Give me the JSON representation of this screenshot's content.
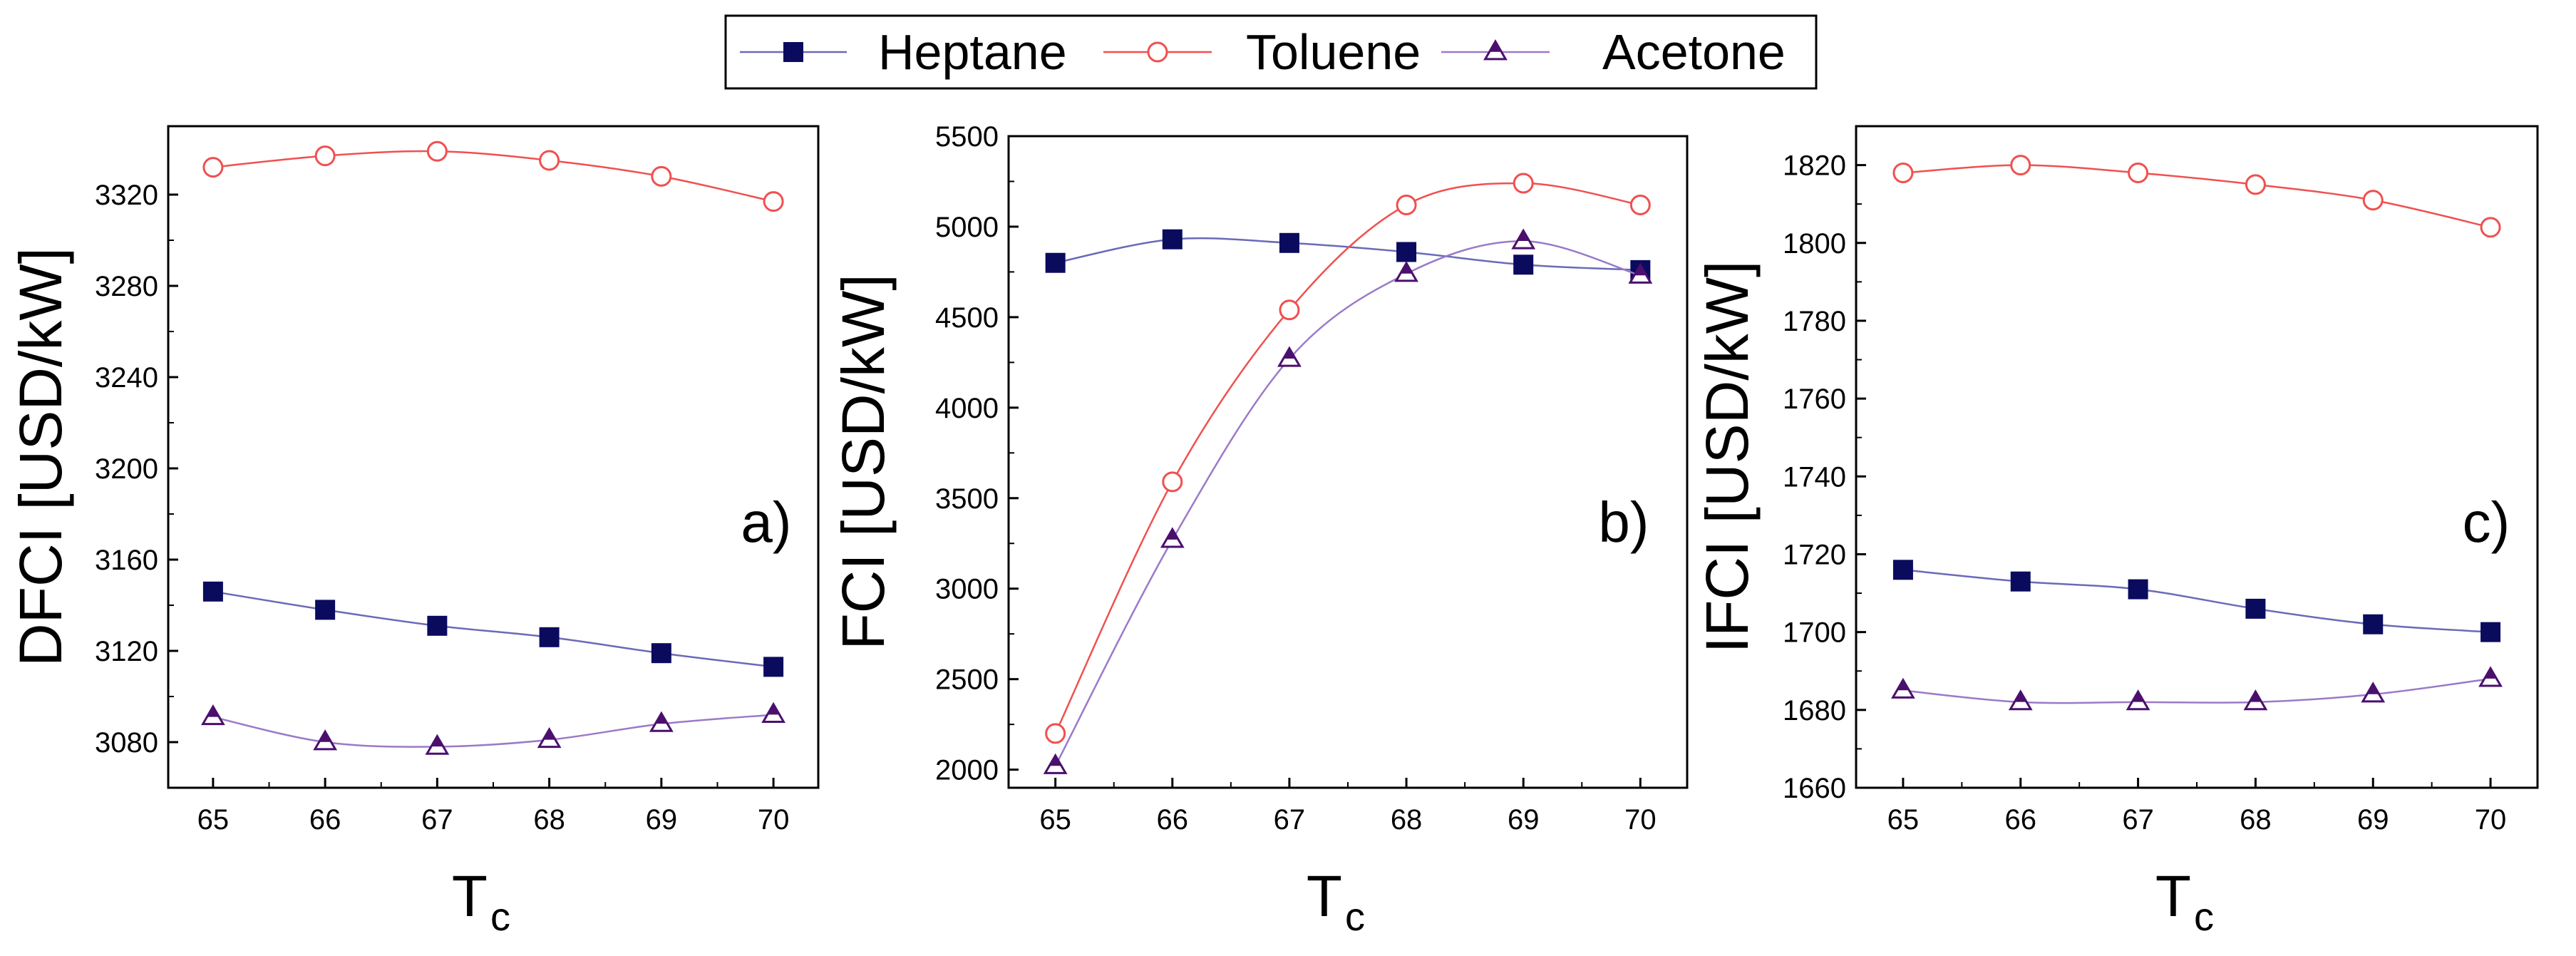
{
  "legend": {
    "entries": [
      {
        "name": "Heptane",
        "marker": "square",
        "filled": true,
        "color": "#0b0b5e"
      },
      {
        "name": "Toluene",
        "marker": "circle",
        "filled": false,
        "color": "#f05050"
      },
      {
        "name": "Acetone",
        "marker": "triangle",
        "filled": true,
        "color": "#4b0f6e"
      }
    ]
  },
  "colors": {
    "heptane_marker": "#0b0b5e",
    "heptane_line": "#6a6ab8",
    "toluene": "#f05050",
    "acetone_marker": "#4b0f6e",
    "acetone_line": "#9a7ac8",
    "axis": "#000000"
  },
  "chart_data": [
    {
      "type": "line",
      "panel_label": "a)",
      "xlabel": "T",
      "xlabel_sub": "c",
      "ylabel": "DFCI [USD/kW]",
      "x": [
        65,
        66,
        67,
        68,
        69,
        70
      ],
      "xlim": [
        64.6,
        70.4
      ],
      "ylim": [
        3060,
        3350
      ],
      "yticks": [
        3080,
        3120,
        3160,
        3200,
        3240,
        3280,
        3320
      ],
      "series": [
        {
          "name": "Heptane",
          "values": [
            3146,
            3138,
            3131,
            3126,
            3119,
            3113
          ]
        },
        {
          "name": "Toluene",
          "values": [
            3332,
            3337,
            3339,
            3335,
            3328,
            3317
          ]
        },
        {
          "name": "Acetone",
          "values": [
            3091,
            3080,
            3078,
            3081,
            3088,
            3092
          ]
        }
      ]
    },
    {
      "type": "line",
      "panel_label": "b)",
      "xlabel": "T",
      "xlabel_sub": "c",
      "ylabel": "FCI [USD/kW]",
      "x": [
        65,
        66,
        67,
        68,
        69,
        70
      ],
      "xlim": [
        64.6,
        70.4
      ],
      "ylim": [
        1900,
        5500
      ],
      "yticks": [
        2000,
        2500,
        3000,
        3500,
        4000,
        4500,
        5000,
        5500
      ],
      "series": [
        {
          "name": "Heptane",
          "values": [
            4800,
            4930,
            4910,
            4860,
            4790,
            4760
          ]
        },
        {
          "name": "Toluene",
          "values": [
            2200,
            3590,
            4540,
            5120,
            5240,
            5120
          ]
        },
        {
          "name": "Acetone",
          "values": [
            2020,
            3270,
            4270,
            4740,
            4920,
            4730
          ]
        }
      ]
    },
    {
      "type": "line",
      "panel_label": "c)",
      "xlabel": "T",
      "xlabel_sub": "c",
      "ylabel": "IFCI [USD/kW]",
      "x": [
        65,
        66,
        67,
        68,
        69,
        70
      ],
      "xlim": [
        64.6,
        70.4
      ],
      "ylim": [
        1660,
        1830
      ],
      "yticks": [
        1660,
        1680,
        1700,
        1720,
        1740,
        1760,
        1780,
        1800,
        1820
      ],
      "series": [
        {
          "name": "Heptane",
          "values": [
            1716,
            1713,
            1711,
            1706,
            1702,
            1700
          ]
        },
        {
          "name": "Toluene",
          "values": [
            1818,
            1820,
            1818,
            1815,
            1811,
            1804
          ]
        },
        {
          "name": "Acetone",
          "values": [
            1685,
            1682,
            1682,
            1682,
            1684,
            1688
          ]
        }
      ]
    }
  ]
}
